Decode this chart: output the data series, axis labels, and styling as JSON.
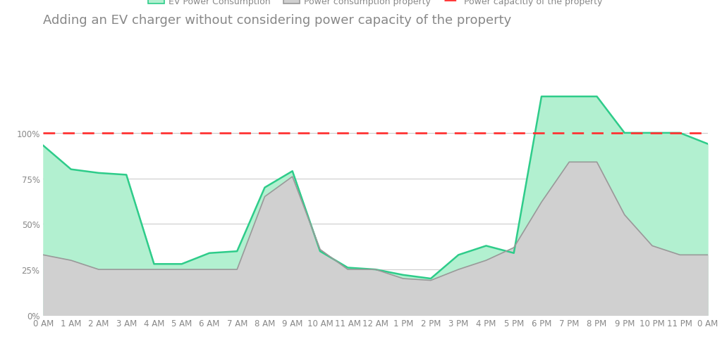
{
  "title": "Adding an EV charger without considering power capacity of the property",
  "title_fontsize": 13,
  "title_color": "#888888",
  "x_labels": [
    "0 AM",
    "1 AM",
    "2 AM",
    "3 AM",
    "4 AM",
    "5 AM",
    "6 AM",
    "7 AM",
    "8 AM",
    "9 AM",
    "10 AM",
    "11 AM",
    "12 AM",
    "1 PM",
    "2 PM",
    "3 PM",
    "4 PM",
    "5 PM",
    "6 PM",
    "7 PM",
    "8 PM",
    "9 PM",
    "10 PM",
    "11 PM",
    "0 AM"
  ],
  "ev_values": [
    93,
    80,
    78,
    77,
    28,
    28,
    34,
    35,
    70,
    79,
    35,
    26,
    25,
    22,
    20,
    33,
    38,
    34,
    120,
    120,
    120,
    100,
    100,
    100,
    94
  ],
  "prop_values": [
    33,
    30,
    25,
    25,
    25,
    25,
    25,
    25,
    65,
    76,
    36,
    25,
    25,
    20,
    19,
    25,
    30,
    37,
    62,
    84,
    84,
    55,
    38,
    33,
    33
  ],
  "capacity_line": 100,
  "ev_fill_color": "#b2f0d0",
  "ev_line_color": "#2ecc8a",
  "prop_fill_color": "#d0d0d0",
  "prop_line_color": "#999999",
  "capacity_color": "#ff3333",
  "background_color": "#ffffff",
  "legend_ev_label": "EV Power Consumption",
  "legend_prop_label": "Power consumption property",
  "legend_cap_label": "Power capacitiy of the property",
  "ylim": [
    0,
    130
  ],
  "ytick_vals": [
    0,
    25,
    50,
    75,
    100
  ],
  "ytick_labels": [
    "0%",
    "25%",
    "50%",
    "75%",
    "100%"
  ],
  "grid_color": "#cccccc",
  "axis_label_color": "#888888",
  "axis_label_fontsize": 8.5
}
